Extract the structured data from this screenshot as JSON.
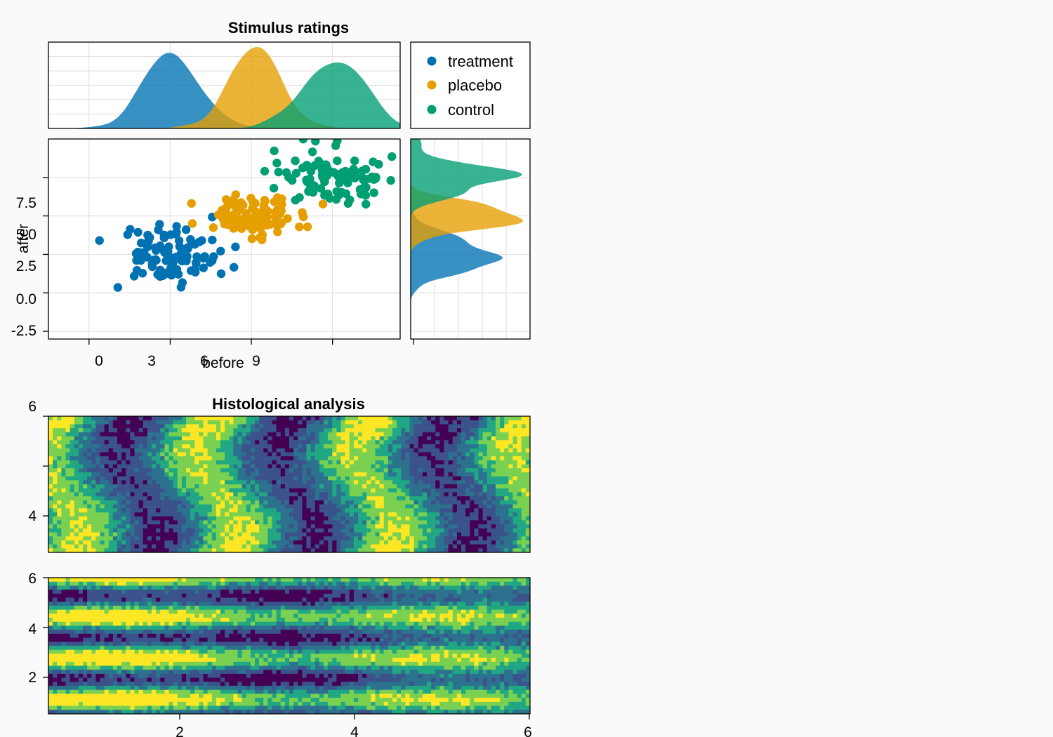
{
  "colors": {
    "treatment": "#0072b2",
    "placebo": "#e69f00",
    "control": "#009e73",
    "viridis": [
      "#440154",
      "#3b528b",
      "#2c728e",
      "#21a784",
      "#7ad151",
      "#fde725"
    ]
  },
  "chart_data": [
    {
      "type": "scatter",
      "title": "Stimulus ratings",
      "xlabel": "before",
      "ylabel": "after",
      "x_tick_labels": [
        "0",
        "3",
        "6",
        "9"
      ],
      "y_tick_labels": [
        "-2.5",
        "0.0",
        "2.5",
        "5.0",
        "7.5"
      ],
      "xlim": [
        -1.5,
        11.5
      ],
      "ylim": [
        -3,
        10
      ],
      "grid": true,
      "legend_position": "top-right",
      "marginals": "density (top and right)",
      "series": [
        {
          "name": "treatment",
          "color": "#0072b2",
          "center": [
            3.0,
            2.5
          ],
          "spread": [
            1.0,
            1.0
          ],
          "n": 100
        },
        {
          "name": "placebo",
          "color": "#e69f00",
          "center": [
            6.0,
            5.0
          ],
          "spread": [
            0.9,
            0.6
          ],
          "n": 100
        },
        {
          "name": "control",
          "color": "#009e73",
          "center": [
            9.0,
            7.5
          ],
          "spread": [
            1.0,
            0.9
          ],
          "n": 100
        }
      ]
    },
    {
      "type": "heatmap",
      "style": "filled contour",
      "title": "Histological analysis",
      "panels": [
        {
          "x_tick_labels": [
            "2",
            "4",
            "6"
          ],
          "y_tick_labels": [
            "4",
            "6"
          ],
          "pattern": "vertical bands"
        },
        {
          "x_tick_labels": [
            "2",
            "4",
            "6"
          ],
          "y_tick_labels": [
            "2",
            "4",
            "6"
          ],
          "pattern": "horizontal bands"
        }
      ],
      "xlim": [
        0.5,
        6
      ],
      "levels": 6,
      "colormap": "viridis"
    }
  ]
}
